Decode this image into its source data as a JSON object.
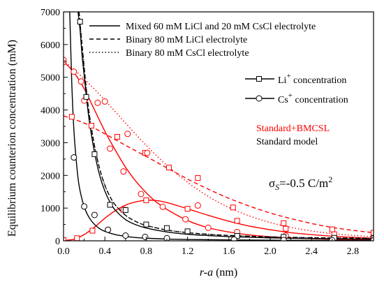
{
  "chart_data": {
    "type": "line",
    "xlabel": {
      "italic": "r-a",
      "rest": " (nm)"
    },
    "ylabel": "Equilibrium counterion concentration (mM)",
    "xlim": [
      0,
      3.0
    ],
    "ylim": [
      0,
      7000
    ],
    "xticks": [
      0.0,
      0.4,
      0.8,
      1.2,
      1.6,
      2.0,
      2.4,
      2.8
    ],
    "xtick_labels": [
      "0.0",
      "0.4",
      "0.8",
      "1.2",
      "1.6",
      "2.0",
      "2.4",
      "2.8"
    ],
    "yticks": [
      0,
      1000,
      2000,
      3000,
      4000,
      5000,
      6000,
      7000
    ],
    "ytick_labels": [
      "0",
      "1000",
      "2000",
      "3000",
      "4000",
      "5000",
      "6000",
      "7000"
    ],
    "grid": false,
    "legend_lines": [
      {
        "dash": "solid",
        "text": "Mixed 60 mM LiCl and 20 mM CsCl electrolyte"
      },
      {
        "dash": "dashed",
        "text": "Binary 80 mM LiCl electrolyte"
      },
      {
        "dash": "dotted",
        "text": "Binary 80 mM CsCl electrolyte"
      }
    ],
    "legend_markers": [
      {
        "marker": "square",
        "base": "Li",
        "sup": "+",
        "rest": " concentration"
      },
      {
        "marker": "circle",
        "base": "Cs",
        "sup": "+",
        "rest": " concentration"
      }
    ],
    "model_labels": [
      {
        "text": "Standard+BMCSL",
        "color": "#ff0000"
      },
      {
        "text": "Standard model",
        "color": "#000000"
      }
    ],
    "annotation": {
      "sym": "σ",
      "sub": "S",
      "value": "=-0.5 C/m",
      "sup": "2"
    },
    "colors": {
      "bmcsl": "#ff0000",
      "standard": "#000000"
    },
    "series": [
      {
        "model": "bmcsl",
        "dash": "solid",
        "marker": "square",
        "x": [
          0.0,
          0.1,
          0.2,
          0.3,
          0.4,
          0.5,
          0.6,
          0.7,
          0.8,
          0.9,
          1.0,
          1.2,
          1.4,
          1.6,
          1.8,
          2.0,
          2.2,
          2.4,
          2.6,
          2.8,
          3.0
        ],
        "y": [
          10,
          50,
          190,
          420,
          690,
          920,
          1090,
          1190,
          1240,
          1230,
          1170,
          980,
          780,
          600,
          450,
          340,
          250,
          190,
          140,
          105,
          80
        ]
      },
      {
        "model": "bmcsl",
        "dash": "solid",
        "marker": "circle",
        "x": [
          0.0,
          0.1,
          0.2,
          0.3,
          0.4,
          0.5,
          0.6,
          0.7,
          0.8,
          0.9,
          1.0,
          1.2,
          1.4,
          1.6,
          1.8,
          2.0,
          2.2,
          2.4,
          2.6,
          2.8,
          3.0
        ],
        "y": [
          5480,
          5150,
          4650,
          4000,
          3350,
          2780,
          2250,
          1820,
          1470,
          1180,
          960,
          620,
          400,
          270,
          180,
          125,
          90,
          65,
          48,
          36,
          28
        ]
      },
      {
        "model": "bmcsl",
        "dash": "dashed",
        "marker": "none",
        "x": [
          0.0,
          0.2,
          0.4,
          0.6,
          0.8,
          1.0,
          1.2,
          1.4,
          1.6,
          1.8,
          2.0,
          2.2,
          2.4,
          2.6,
          2.8,
          3.0
        ],
        "y": [
          3820,
          3600,
          3270,
          2920,
          2580,
          2230,
          1890,
          1580,
          1300,
          1060,
          850,
          680,
          530,
          410,
          320,
          250
        ]
      },
      {
        "model": "bmcsl",
        "dash": "dotted",
        "marker": "none",
        "x": [
          0.0,
          0.2,
          0.4,
          0.6,
          0.8,
          1.0,
          1.2,
          1.4,
          1.6,
          1.8,
          2.0,
          2.2,
          2.4,
          2.6,
          2.8,
          3.0
        ],
        "y": [
          5520,
          4950,
          4300,
          3600,
          2920,
          2310,
          1790,
          1360,
          1020,
          760,
          560,
          410,
          300,
          220,
          165,
          125
        ]
      },
      {
        "model": "standard",
        "dash": "solid",
        "marker": "square",
        "x": [
          0.14,
          0.16,
          0.18,
          0.2,
          0.22,
          0.25,
          0.3,
          0.35,
          0.4,
          0.45,
          0.5,
          0.6,
          0.7,
          0.8,
          1.0,
          1.2,
          1.4,
          1.6,
          2.0,
          2.4,
          2.8,
          3.0
        ],
        "y": [
          7000,
          6450,
          5650,
          5050,
          4450,
          3650,
          2700,
          2000,
          1520,
          1180,
          940,
          650,
          490,
          390,
          270,
          200,
          160,
          130,
          90,
          70,
          55,
          50
        ]
      },
      {
        "model": "standard",
        "dash": "solid",
        "marker": "circle",
        "x": [
          0.06,
          0.08,
          0.1,
          0.12,
          0.15,
          0.2,
          0.25,
          0.3,
          0.35,
          0.4,
          0.5,
          0.6,
          0.7,
          0.8,
          1.0,
          1.2,
          1.6,
          2.0,
          2.4,
          3.0
        ],
        "y": [
          7000,
          4800,
          3400,
          2560,
          1700,
          1040,
          700,
          500,
          370,
          290,
          190,
          135,
          100,
          80,
          55,
          42,
          28,
          20,
          15,
          12
        ]
      },
      {
        "model": "standard",
        "dash": "dashed",
        "marker": "none",
        "x": [
          0.15,
          0.17,
          0.2,
          0.22,
          0.25,
          0.3,
          0.35,
          0.4,
          0.45,
          0.5,
          0.6,
          0.7,
          0.8,
          1.0,
          1.2,
          1.4,
          1.6,
          2.0,
          2.4,
          2.8,
          3.0
        ],
        "y": [
          7000,
          6300,
          5300,
          4650,
          3850,
          2900,
          2200,
          1700,
          1350,
          1100,
          780,
          590,
          470,
          330,
          250,
          200,
          165,
          120,
          95,
          80,
          75
        ]
      },
      {
        "model": "standard",
        "dash": "dotted",
        "marker": "none",
        "x": [
          0.15,
          0.17,
          0.2,
          0.22,
          0.25,
          0.3,
          0.35,
          0.4,
          0.45,
          0.5,
          0.6,
          0.7,
          0.8,
          1.0,
          1.2,
          1.4,
          1.6,
          2.0,
          2.4,
          2.8,
          3.0
        ],
        "y": [
          7000,
          6300,
          5300,
          4650,
          3850,
          2900,
          2200,
          1700,
          1350,
          1100,
          780,
          590,
          470,
          330,
          250,
          200,
          165,
          120,
          95,
          80,
          75
        ]
      }
    ],
    "markers": [
      {
        "model": "bmcsl",
        "marker": "square",
        "x": [
          0.0,
          0.13,
          0.28,
          0.58,
          0.8,
          1.2,
          1.68,
          2.15,
          2.62,
          3.0
        ],
        "y": [
          20,
          80,
          310,
          950,
          1240,
          980,
          610,
          370,
          200,
          125
        ]
      },
      {
        "model": "bmcsl",
        "marker": "circle",
        "x": [
          0.0,
          0.1,
          0.17,
          0.33,
          0.45,
          0.58,
          0.75,
          0.96,
          1.18,
          1.4,
          1.68,
          2.15,
          2.62,
          3.0
        ],
        "y": [
          5470,
          5170,
          4870,
          4220,
          2820,
          2120,
          1430,
          1040,
          660,
          400,
          270,
          160,
          80,
          28
        ]
      },
      {
        "model": "bmcsl",
        "marker": "square",
        "x": [
          0.08,
          0.27,
          0.52,
          0.79,
          1.02,
          1.3,
          1.64,
          2.13,
          2.6,
          3.0
        ],
        "y": [
          3790,
          3520,
          3180,
          2690,
          2240,
          1920,
          1020,
          540,
          350,
          245
        ]
      },
      {
        "model": "bmcsl",
        "marker": "circle",
        "x": [
          0.0,
          0.2,
          0.4,
          0.62,
          0.81,
          1.3
        ],
        "y": [
          5530,
          4290,
          4260,
          3270,
          2690,
          1080
        ]
      },
      {
        "model": "standard",
        "marker": "square",
        "x": [
          0.16,
          0.22,
          0.3,
          0.45,
          0.6,
          0.8,
          1.0,
          1.2,
          1.68,
          2.13,
          2.62,
          3.0
        ],
        "y": [
          6700,
          4400,
          2650,
          1100,
          940,
          500,
          390,
          290,
          150,
          120,
          90,
          75
        ]
      },
      {
        "model": "standard",
        "marker": "circle",
        "x": [
          0.1,
          0.2,
          0.3,
          0.43,
          0.6,
          0.79,
          1.0,
          1.65,
          2.13,
          2.6,
          3.0
        ],
        "y": [
          2550,
          1050,
          790,
          340,
          160,
          120,
          80,
          40,
          25,
          18,
          15
        ]
      }
    ]
  }
}
